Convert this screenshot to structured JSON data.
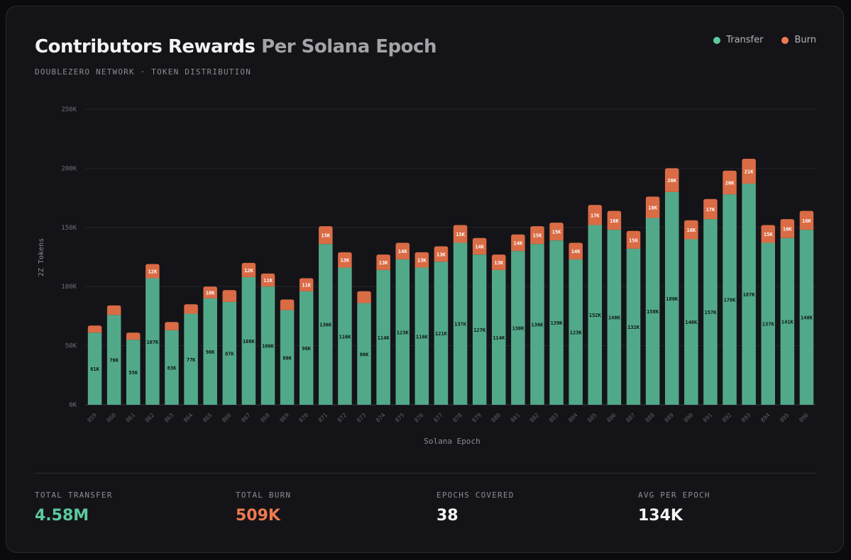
{
  "header": {
    "title_main": "Contributors Rewards",
    "title_rest": "Per Solana Epoch",
    "subtitle": "DOUBLEZERO NETWORK · TOKEN DISTRIBUTION"
  },
  "legend": {
    "transfer_label": "Transfer",
    "burn_label": "Burn"
  },
  "colors": {
    "transfer": "#52a98a",
    "burn": "#d96b45",
    "transfer_stat": "#5cc99f",
    "burn_stat": "#ee7a4f",
    "white_stat": "#f4f4f4"
  },
  "chart_data": {
    "type": "bar",
    "stacked": true,
    "title": "Contributors Rewards Per Solana Epoch",
    "xlabel": "Solana Epoch",
    "ylabel": "2Z Tokens",
    "ylim": [
      0,
      250000
    ],
    "yticks": [
      0,
      50000,
      100000,
      150000,
      200000,
      250000
    ],
    "ytick_labels": [
      "0K",
      "50K",
      "100K",
      "150K",
      "200K",
      "250K"
    ],
    "grid": true,
    "categories": [
      "859",
      "860",
      "861",
      "862",
      "863",
      "864",
      "865",
      "866",
      "867",
      "868",
      "869",
      "870",
      "871",
      "872",
      "873",
      "874",
      "875",
      "876",
      "877",
      "878",
      "879",
      "880",
      "881",
      "882",
      "883",
      "884",
      "885",
      "886",
      "887",
      "888",
      "889",
      "890",
      "891",
      "892",
      "893",
      "894",
      "895",
      "896"
    ],
    "series": [
      {
        "name": "Transfer",
        "values": [
          61,
          76,
          55,
          107,
          63,
          77,
          90,
          87,
          108,
          100,
          80,
          96,
          136,
          116,
          86,
          114,
          123,
          116,
          121,
          137,
          127,
          114,
          130,
          136,
          139,
          123,
          152,
          148,
          132,
          158,
          180,
          140,
          157,
          178,
          187,
          137,
          141,
          148
        ],
        "unit_multiplier": 1000,
        "labels": [
          "61K",
          "76K",
          "55K",
          "107K",
          "63K",
          "77K",
          "90K",
          "87K",
          "108K",
          "100K",
          "80K",
          "96K",
          "136K",
          "116K",
          "86K",
          "114K",
          "123K",
          "116K",
          "121K",
          "137K",
          "127K",
          "114K",
          "130K",
          "136K",
          "139K",
          "123K",
          "152K",
          "148K",
          "132K",
          "158K",
          "180K",
          "140K",
          "157K",
          "178K",
          "187K",
          "137K",
          "141K",
          "148K"
        ]
      },
      {
        "name": "Burn",
        "values": [
          6,
          8,
          6,
          12,
          7,
          8,
          10,
          10,
          12,
          11,
          9,
          11,
          15,
          13,
          10,
          13,
          14,
          13,
          13,
          15,
          14,
          13,
          14,
          15,
          15,
          14,
          17,
          16,
          15,
          18,
          20,
          16,
          17,
          20,
          21,
          15,
          16,
          16
        ],
        "unit_multiplier": 1000,
        "labels": [
          "",
          "",
          "",
          "12K",
          "",
          "",
          "10K",
          "",
          "12K",
          "11K",
          "",
          "11K",
          "15K",
          "13K",
          "",
          "13K",
          "14K",
          "13K",
          "13K",
          "15K",
          "14K",
          "13K",
          "14K",
          "15K",
          "15K",
          "14K",
          "17K",
          "16K",
          "15K",
          "18K",
          "20K",
          "16K",
          "17K",
          "20K",
          "21K",
          "15K",
          "16K",
          "16K"
        ]
      }
    ]
  },
  "stats": {
    "total_transfer_label": "TOTAL TRANSFER",
    "total_transfer_value": "4.58M",
    "total_burn_label": "TOTAL BURN",
    "total_burn_value": "509K",
    "epochs_covered_label": "EPOCHS COVERED",
    "epochs_covered_value": "38",
    "avg_per_epoch_label": "AVG PER EPOCH",
    "avg_per_epoch_value": "134K"
  }
}
